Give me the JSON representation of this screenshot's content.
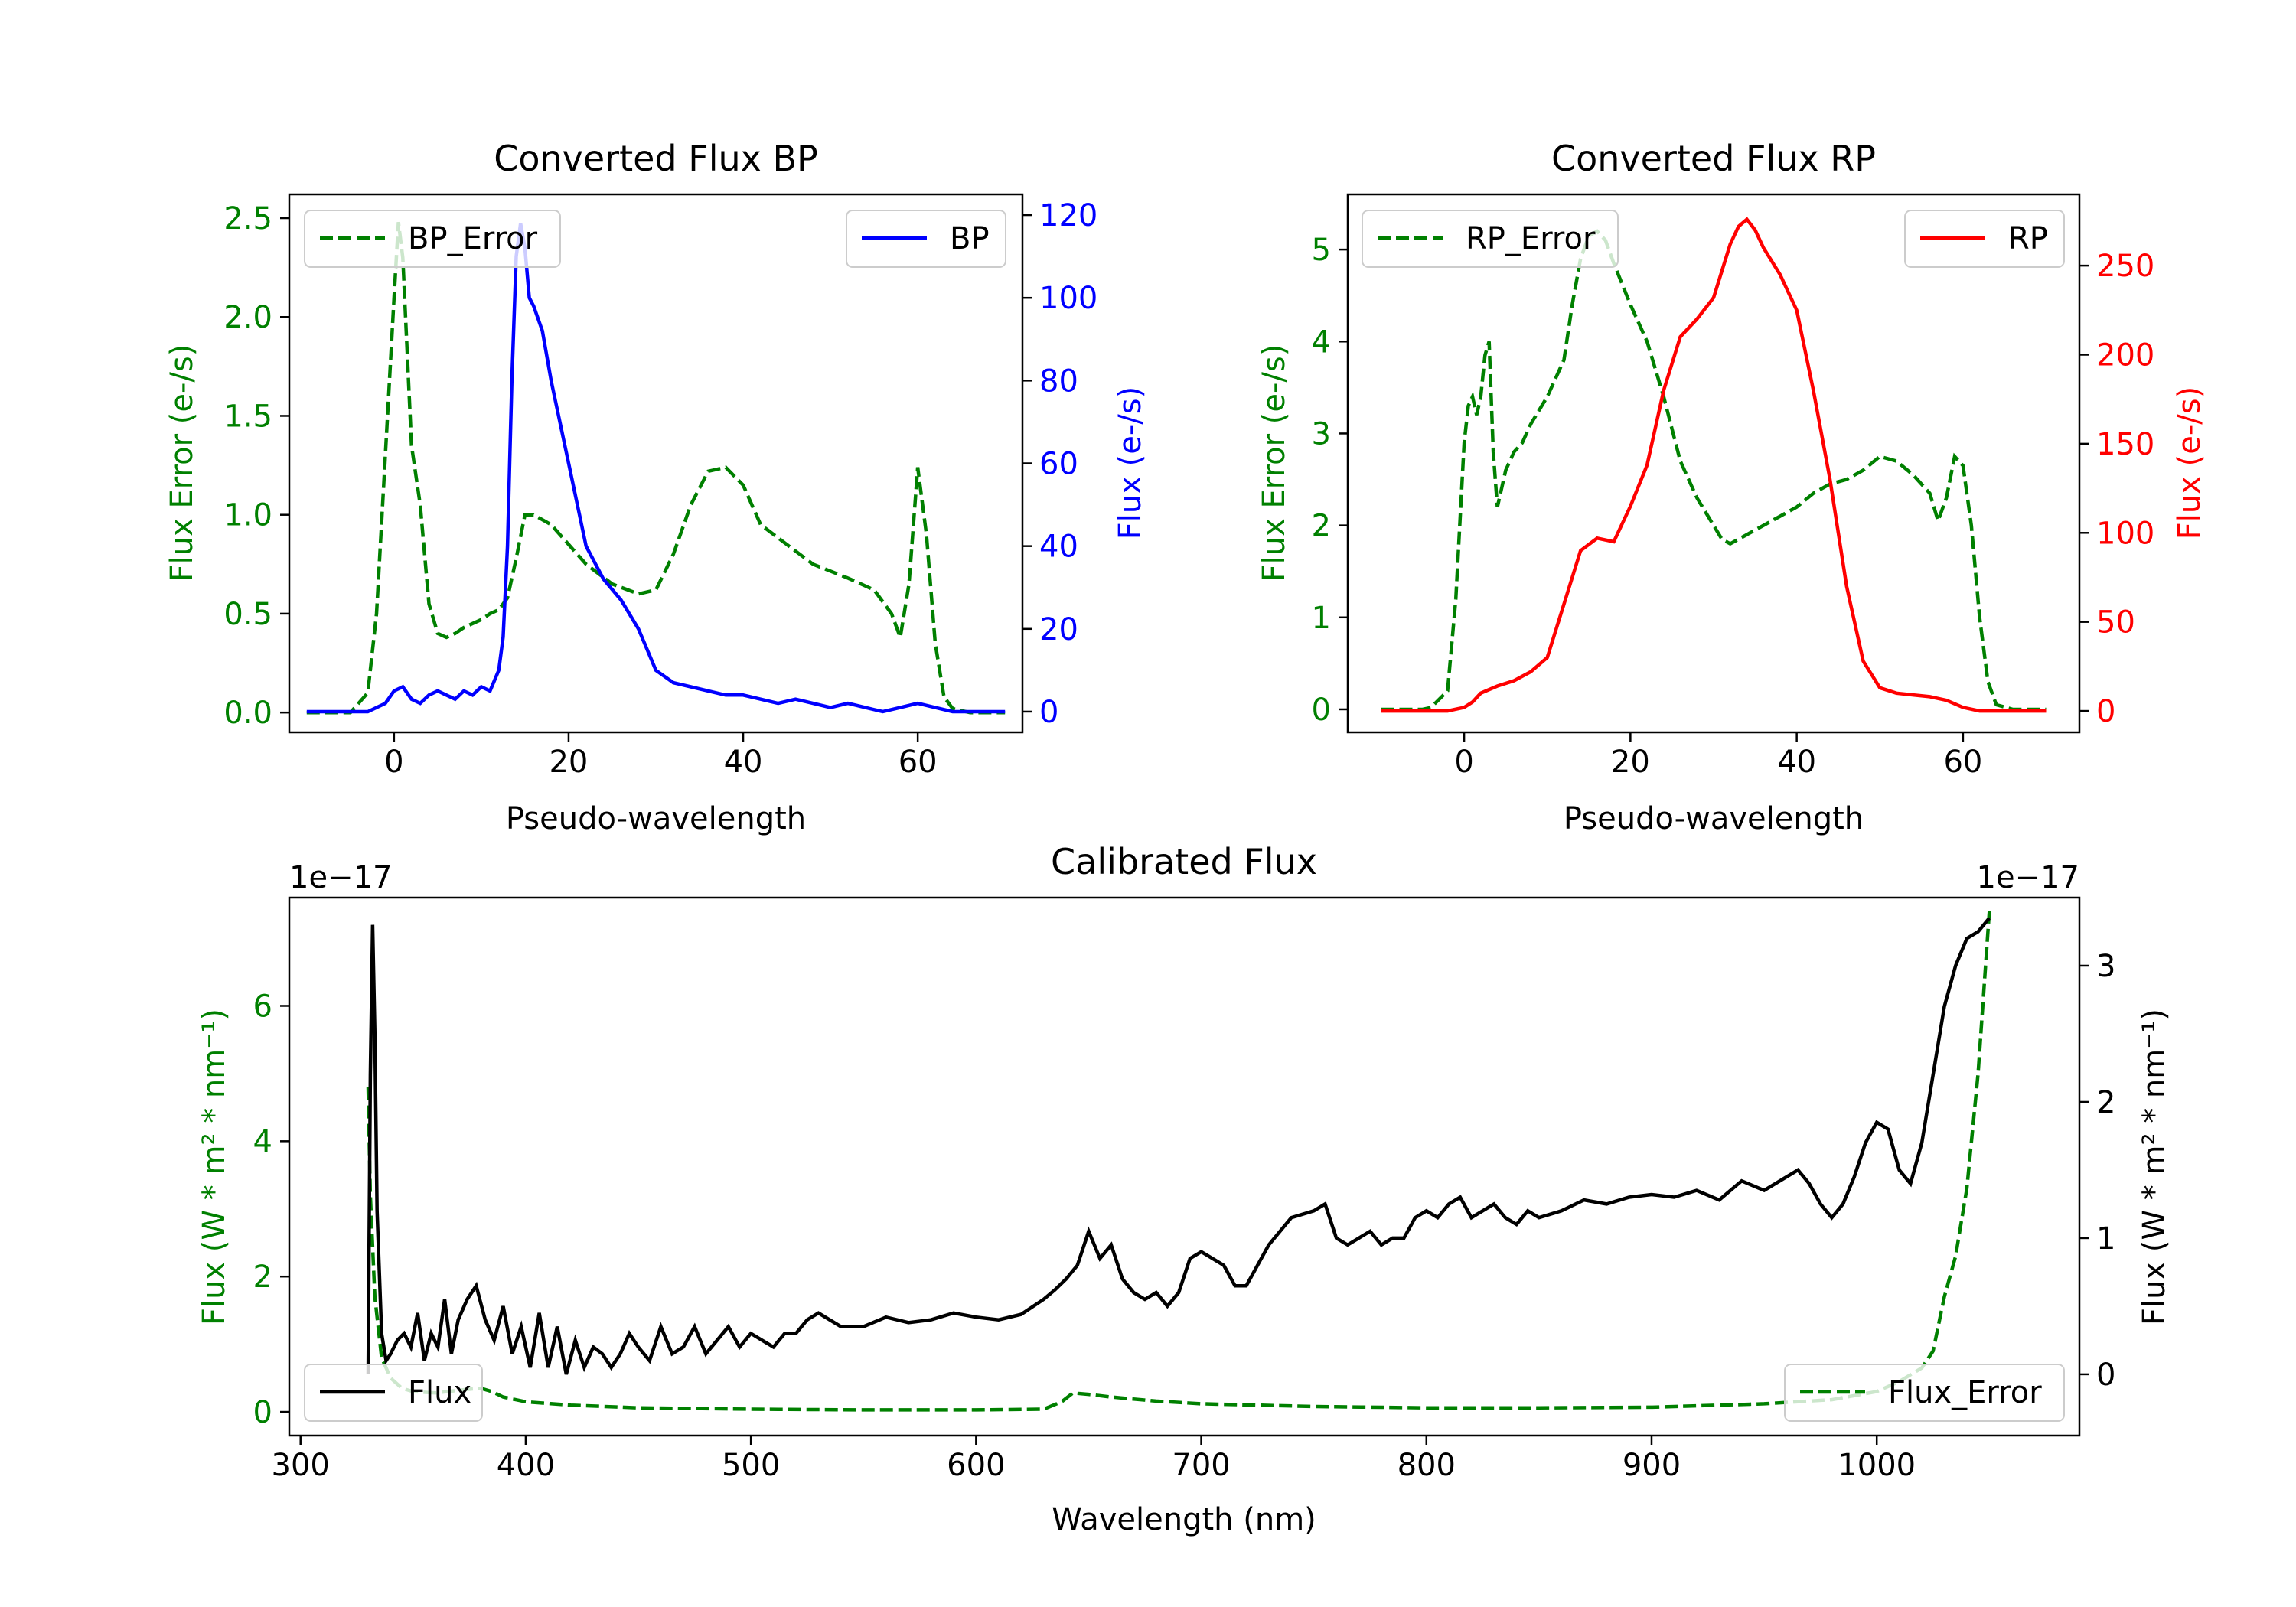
{
  "chart_data": [
    {
      "type": "line",
      "title": "Converted Flux BP",
      "xlabel": "Pseudo-wavelength",
      "ylabel_left": "Flux Error (e-/s)",
      "ylabel_right": "Flux (e-/s)",
      "xlim": [
        -12,
        72
      ],
      "ylim_left": [
        -0.1,
        2.62
      ],
      "ylim_right": [
        -5,
        125
      ],
      "xticks": [
        "0",
        "20",
        "40",
        "60"
      ],
      "xtick_values": [
        0,
        20,
        40,
        60
      ],
      "yticks_left": [
        "0.0",
        "0.5",
        "1.0",
        "1.5",
        "2.0",
        "2.5"
      ],
      "ytick_values_left": [
        0,
        0.5,
        1,
        1.5,
        2,
        2.5
      ],
      "yticks_right": [
        "0",
        "20",
        "40",
        "60",
        "80",
        "100",
        "120"
      ],
      "ytick_values_right": [
        0,
        20,
        40,
        60,
        80,
        100,
        120
      ],
      "colors": {
        "error": "#008000",
        "flux": "#0000ff"
      },
      "legend": [
        {
          "label": "BP_Error",
          "position": "upper left",
          "style": "dashed"
        },
        {
          "label": "BP",
          "position": "upper right",
          "style": "solid"
        }
      ],
      "series": [
        {
          "name": "BP_Error",
          "axis": "left",
          "style": "dashed",
          "x": [
            -10,
            -5,
            -3,
            -2,
            -1,
            0,
            0.5,
            1,
            2,
            3,
            4,
            5,
            6,
            7,
            8,
            9,
            10,
            11,
            12,
            13,
            14,
            15,
            16,
            18,
            20,
            22,
            25,
            28,
            30,
            32,
            34,
            36,
            38,
            40,
            42,
            45,
            48,
            52,
            55,
            57,
            58,
            59,
            60,
            61,
            62,
            63,
            64,
            66,
            70
          ],
          "values": [
            0,
            0,
            0.1,
            0.5,
            1.3,
            2.1,
            2.48,
            2.3,
            1.35,
            1.05,
            0.55,
            0.4,
            0.38,
            0.4,
            0.43,
            0.45,
            0.47,
            0.5,
            0.52,
            0.58,
            0.78,
            1.0,
            1.0,
            0.95,
            0.85,
            0.75,
            0.65,
            0.6,
            0.62,
            0.8,
            1.05,
            1.22,
            1.24,
            1.15,
            0.95,
            0.85,
            0.75,
            0.68,
            0.62,
            0.5,
            0.38,
            0.65,
            1.24,
            0.9,
            0.35,
            0.08,
            0.02,
            0,
            0
          ]
        },
        {
          "name": "BP",
          "axis": "right",
          "style": "solid",
          "x": [
            -10,
            -3,
            -1,
            0,
            1,
            2,
            3,
            4,
            5,
            6,
            7,
            8,
            9,
            10,
            11,
            12,
            12.5,
            13,
            13.5,
            14,
            14.5,
            15,
            15.5,
            16,
            17,
            18,
            20,
            22,
            24,
            26,
            28,
            30,
            32,
            34,
            36,
            38,
            40,
            42,
            44,
            46,
            48,
            50,
            52,
            54,
            56,
            58,
            60,
            62,
            64,
            66,
            70
          ],
          "values": [
            0,
            0,
            2,
            5,
            6,
            3,
            2,
            4,
            5,
            4,
            3,
            5,
            4,
            6,
            5,
            10,
            18,
            40,
            80,
            110,
            118,
            112,
            100,
            98,
            92,
            80,
            60,
            40,
            32,
            27,
            20,
            10,
            7,
            6,
            5,
            4,
            4,
            3,
            2,
            3,
            2,
            1,
            2,
            1,
            0,
            1,
            2,
            1,
            0,
            0,
            0
          ]
        }
      ]
    },
    {
      "type": "line",
      "title": "Converted Flux RP",
      "xlabel": "Pseudo-wavelength",
      "ylabel_left": "Flux Error (e-/s)",
      "ylabel_right": "Flux (e-/s)",
      "xlim": [
        -14,
        74
      ],
      "ylim_left": [
        -0.25,
        5.6
      ],
      "ylim_right": [
        -12,
        290
      ],
      "xticks": [
        "0",
        "20",
        "40",
        "60"
      ],
      "xtick_values": [
        0,
        20,
        40,
        60
      ],
      "yticks_left": [
        "0",
        "1",
        "2",
        "3",
        "4",
        "5"
      ],
      "ytick_values_left": [
        0,
        1,
        2,
        3,
        4,
        5
      ],
      "yticks_right": [
        "0",
        "50",
        "100",
        "150",
        "200",
        "250"
      ],
      "ytick_values_right": [
        0,
        50,
        100,
        150,
        200,
        250
      ],
      "colors": {
        "error": "#008000",
        "flux": "#ff0000"
      },
      "legend": [
        {
          "label": "RP_Error",
          "position": "upper left",
          "style": "dashed"
        },
        {
          "label": "RP",
          "position": "upper right",
          "style": "solid"
        }
      ],
      "series": [
        {
          "name": "RP_Error",
          "axis": "left",
          "style": "dashed",
          "x": [
            -10,
            -5,
            -4,
            -2,
            -1,
            0,
            0.5,
            1,
            1.5,
            2,
            2.5,
            3,
            3.5,
            4,
            5,
            6,
            7,
            8,
            10,
            12,
            13,
            14,
            15,
            16,
            17,
            18,
            20,
            22,
            24,
            26,
            28,
            30,
            31,
            32,
            34,
            36,
            38,
            40,
            42,
            44,
            46,
            48,
            50,
            52,
            54,
            56,
            57,
            58,
            59,
            60,
            61,
            62,
            63,
            64,
            66,
            70
          ],
          "values": [
            0,
            0,
            0.02,
            0.2,
            1.2,
            2.9,
            3.3,
            3.4,
            3.2,
            3.4,
            3.85,
            4.0,
            2.8,
            2.2,
            2.6,
            2.8,
            2.9,
            3.1,
            3.4,
            3.8,
            4.4,
            4.9,
            5.15,
            5.2,
            5.1,
            4.85,
            4.4,
            4.0,
            3.4,
            2.7,
            2.3,
            2.0,
            1.85,
            1.8,
            1.9,
            2.0,
            2.1,
            2.2,
            2.35,
            2.45,
            2.5,
            2.6,
            2.75,
            2.7,
            2.55,
            2.35,
            2.05,
            2.3,
            2.75,
            2.65,
            2.0,
            1.0,
            0.3,
            0.05,
            0,
            0
          ]
        },
        {
          "name": "RP",
          "axis": "right",
          "style": "solid",
          "x": [
            -10,
            -2,
            0,
            1,
            2,
            4,
            6,
            8,
            10,
            12,
            14,
            16,
            18,
            20,
            22,
            24,
            26,
            28,
            30,
            32,
            33,
            34,
            35,
            36,
            38,
            40,
            42,
            44,
            46,
            48,
            50,
            52,
            54,
            56,
            58,
            60,
            62,
            66,
            70
          ],
          "values": [
            0,
            0,
            2,
            5,
            10,
            14,
            17,
            22,
            30,
            60,
            90,
            97,
            95,
            115,
            138,
            180,
            210,
            220,
            232,
            262,
            272,
            276,
            270,
            260,
            245,
            225,
            180,
            130,
            70,
            28,
            13,
            10,
            9,
            8,
            6,
            2,
            0,
            0,
            0
          ]
        }
      ]
    },
    {
      "type": "line",
      "title": "Calibrated Flux",
      "xlabel": "Wavelength (nm)",
      "ylabel_left": "Flux (W * m² * nm⁻¹)",
      "ylabel_right": "Flux (W * m² * nm⁻¹)",
      "offset_left": "1e−17",
      "offset_right": "1e−17",
      "xlim": [
        295,
        1090
      ],
      "ylim_left": [
        -0.35,
        7.6
      ],
      "ylim_right": [
        -0.45,
        3.5
      ],
      "xticks": [
        "300",
        "400",
        "500",
        "600",
        "700",
        "800",
        "900",
        "1000"
      ],
      "xtick_values": [
        300,
        400,
        500,
        600,
        700,
        800,
        900,
        1000
      ],
      "yticks_left": [
        "0",
        "2",
        "4",
        "6"
      ],
      "ytick_values_left": [
        0,
        2,
        4,
        6
      ],
      "yticks_right": [
        "0",
        "1",
        "2",
        "3"
      ],
      "ytick_values_right": [
        0,
        1,
        2,
        3
      ],
      "colors": {
        "flux": "#000000",
        "error": "#008000"
      },
      "legend": [
        {
          "label": "Flux",
          "position": "lower left",
          "style": "solid"
        },
        {
          "label": "Flux_Error",
          "position": "lower right",
          "style": "dashed"
        }
      ],
      "series": [
        {
          "name": "Flux_Error",
          "axis": "left",
          "style": "dashed",
          "x": [
            330,
            331,
            333,
            336,
            340,
            345,
            350,
            360,
            370,
            380,
            385,
            390,
            400,
            420,
            450,
            500,
            550,
            600,
            630,
            638,
            643,
            650,
            660,
            680,
            700,
            750,
            800,
            850,
            900,
            950,
            980,
            1000,
            1010,
            1020,
            1025,
            1030,
            1035,
            1040,
            1045,
            1050
          ],
          "values": [
            4.8,
            3.2,
            1.7,
            0.8,
            0.5,
            0.35,
            0.3,
            0.28,
            0.32,
            0.35,
            0.3,
            0.22,
            0.15,
            0.1,
            0.06,
            0.04,
            0.03,
            0.03,
            0.04,
            0.15,
            0.28,
            0.26,
            0.22,
            0.16,
            0.12,
            0.08,
            0.06,
            0.06,
            0.07,
            0.12,
            0.18,
            0.3,
            0.45,
            0.65,
            0.9,
            1.7,
            2.3,
            3.3,
            5.0,
            7.4
          ]
        },
        {
          "name": "Flux",
          "axis": "right",
          "style": "solid",
          "x": [
            330,
            331,
            332,
            333,
            334,
            336,
            338,
            340,
            343,
            346,
            349,
            352,
            355,
            358,
            361,
            364,
            367,
            370,
            374,
            378,
            382,
            386,
            390,
            394,
            398,
            402,
            406,
            410,
            414,
            418,
            422,
            426,
            430,
            434,
            438,
            442,
            446,
            450,
            455,
            460,
            465,
            470,
            475,
            480,
            485,
            490,
            495,
            500,
            505,
            510,
            515,
            520,
            525,
            530,
            540,
            550,
            560,
            570,
            580,
            590,
            600,
            610,
            620,
            630,
            635,
            640,
            645,
            650,
            655,
            660,
            665,
            670,
            675,
            680,
            685,
            690,
            695,
            700,
            705,
            710,
            715,
            720,
            725,
            730,
            740,
            750,
            755,
            760,
            765,
            770,
            775,
            780,
            785,
            790,
            795,
            800,
            805,
            810,
            815,
            820,
            825,
            830,
            835,
            840,
            845,
            850,
            860,
            870,
            880,
            890,
            900,
            910,
            920,
            930,
            940,
            950,
            960,
            965,
            970,
            975,
            980,
            985,
            990,
            995,
            1000,
            1005,
            1010,
            1015,
            1020,
            1025,
            1030,
            1035,
            1040,
            1045,
            1050
          ],
          "values": [
            0,
            2.2,
            3.3,
            2.5,
            1.2,
            0.3,
            0.1,
            0.15,
            0.25,
            0.3,
            0.2,
            0.45,
            0.1,
            0.3,
            0.2,
            0.55,
            0.15,
            0.4,
            0.55,
            0.65,
            0.4,
            0.25,
            0.5,
            0.15,
            0.35,
            0.05,
            0.45,
            0.05,
            0.35,
            0.0,
            0.25,
            0.05,
            0.2,
            0.15,
            0.05,
            0.15,
            0.3,
            0.2,
            0.1,
            0.35,
            0.15,
            0.2,
            0.35,
            0.15,
            0.25,
            0.35,
            0.2,
            0.3,
            0.25,
            0.2,
            0.3,
            0.3,
            0.4,
            0.45,
            0.35,
            0.35,
            0.42,
            0.38,
            0.4,
            0.45,
            0.42,
            0.4,
            0.44,
            0.55,
            0.62,
            0.7,
            0.8,
            1.05,
            0.85,
            0.95,
            0.7,
            0.6,
            0.55,
            0.6,
            0.5,
            0.6,
            0.85,
            0.9,
            0.85,
            0.8,
            0.65,
            0.65,
            0.8,
            0.95,
            1.15,
            1.2,
            1.25,
            1.0,
            0.95,
            1.0,
            1.05,
            0.95,
            1.0,
            1.0,
            1.15,
            1.2,
            1.15,
            1.25,
            1.3,
            1.15,
            1.2,
            1.25,
            1.15,
            1.1,
            1.2,
            1.15,
            1.2,
            1.28,
            1.25,
            1.3,
            1.32,
            1.3,
            1.35,
            1.28,
            1.42,
            1.35,
            1.45,
            1.5,
            1.4,
            1.25,
            1.15,
            1.25,
            1.45,
            1.7,
            1.85,
            1.8,
            1.5,
            1.4,
            1.7,
            2.2,
            2.7,
            3.0,
            3.2,
            3.25,
            3.35
          ]
        }
      ]
    }
  ]
}
